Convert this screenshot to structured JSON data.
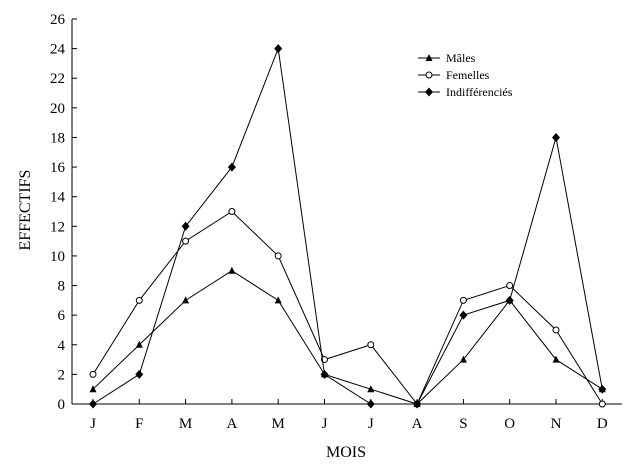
{
  "chart_data": {
    "type": "line",
    "xlabel": "MOIS",
    "ylabel": "EFFECTIFS",
    "categories": [
      "J",
      "F",
      "M",
      "A",
      "M",
      "J",
      "J",
      "A",
      "S",
      "O",
      "N",
      "D"
    ],
    "ylim": [
      0,
      26
    ],
    "yticks": [
      0,
      2,
      4,
      6,
      8,
      10,
      12,
      14,
      16,
      18,
      20,
      22,
      24,
      26
    ],
    "grid": false,
    "legend_position": "top-right",
    "series": [
      {
        "name": "Mâles",
        "marker": "triangle",
        "values": [
          1,
          4,
          7,
          9,
          7,
          2,
          1,
          0,
          3,
          7,
          3,
          1
        ]
      },
      {
        "name": "Femelles",
        "marker": "circle-open",
        "values": [
          2,
          7,
          11,
          13,
          10,
          3,
          4,
          0,
          7,
          8,
          5,
          0
        ]
      },
      {
        "name": "Indifférenciés",
        "marker": "diamond",
        "values": [
          0,
          2,
          12,
          16,
          24,
          2,
          0,
          0,
          6,
          7,
          18,
          1
        ]
      }
    ]
  }
}
